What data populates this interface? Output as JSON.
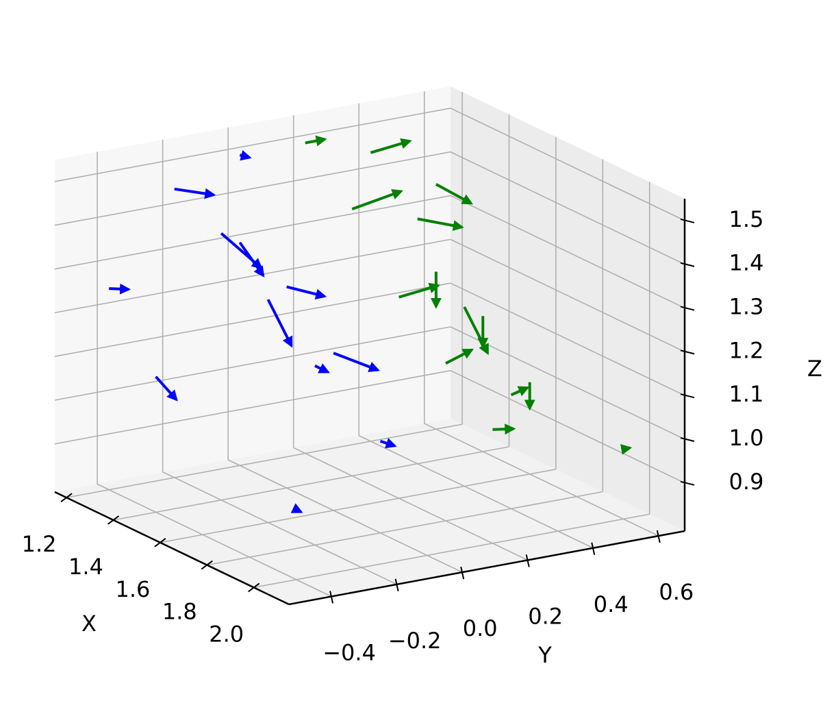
{
  "chart_data": {
    "type": "quiver3d",
    "xlabel": "X",
    "ylabel": "Y",
    "zlabel": "Z",
    "xlim": [
      1.15,
      2.15
    ],
    "ylim": [
      -0.53,
      0.68
    ],
    "zlim": [
      0.79,
      1.55
    ],
    "xticks": [
      1.2,
      1.4,
      1.6,
      1.8,
      {
        "value": 2.0,
        "label": "2.0"
      }
    ],
    "yticks": [
      {
        "value": -0.4,
        "label": "−0.4"
      },
      {
        "value": -0.2,
        "label": "−0.2"
      },
      {
        "value": 0.0,
        "label": "0.0"
      },
      0.2,
      0.4,
      0.6
    ],
    "zticks": [
      0.9,
      {
        "value": 1.0,
        "label": "1.0"
      },
      1.1,
      1.2,
      1.3,
      1.4,
      1.5
    ],
    "grid": true,
    "series": [
      {
        "color": "#0000ff",
        "x": [
          1.2,
          1.2,
          1.4,
          1.4,
          1.2,
          1.6,
          1.6,
          1.4,
          1.8,
          1.8,
          1.2,
          2.0
        ],
        "y": [
          -0.2,
          0.0,
          -0.2,
          0.0,
          -0.4,
          -0.2,
          0.0,
          -0.4,
          -0.2,
          0.0,
          0.0,
          -0.4
        ],
        "z": [
          1.45,
          1.3,
          1.4,
          1.25,
          1.25,
          1.3,
          1.15,
          1.1,
          1.2,
          1.0,
          1.5,
          0.95
        ],
        "u": [
          0.0,
          0.1,
          0.1,
          0.05,
          0.0,
          0.1,
          0.05,
          0.06,
          0.0,
          0.02,
          0.0,
          0.02
        ],
        "v": [
          0.12,
          0.0,
          0.05,
          0.08,
          0.06,
          0.0,
          0.1,
          0.02,
          0.04,
          0.03,
          0.03,
          0.0
        ],
        "w": [
          -0.03,
          -0.05,
          -0.06,
          -0.02,
          -0.01,
          -0.08,
          -0.04,
          -0.04,
          -0.02,
          -0.01,
          -0.01,
          0.0
        ]
      },
      {
        "color": "#008000",
        "x": [
          1.2,
          1.2,
          1.4,
          1.4,
          1.6,
          1.6,
          1.2,
          1.4,
          1.8,
          1.8,
          2.0,
          1.6,
          1.2,
          2.0
        ],
        "y": [
          0.4,
          0.6,
          0.2,
          0.4,
          0.2,
          0.4,
          0.6,
          0.6,
          0.2,
          0.4,
          0.2,
          0.6,
          0.2,
          0.6
        ],
        "z": [
          1.45,
          1.35,
          1.4,
          1.35,
          1.25,
          1.2,
          1.15,
          1.1,
          1.15,
          1.05,
          1.05,
          1.0,
          1.5,
          0.95
        ],
        "u": [
          0.0,
          0.08,
          0.0,
          0.05,
          0.0,
          0.1,
          0.0,
          0.0,
          0.0,
          0.0,
          0.02,
          0.0,
          0.0,
          0.0
        ],
        "v": [
          0.12,
          0.05,
          0.15,
          0.1,
          0.12,
          0.0,
          0.0,
          0.0,
          0.08,
          0.05,
          0.05,
          0.0,
          0.06,
          0.02
        ],
        "w": [
          0.01,
          -0.03,
          0.02,
          -0.02,
          0.01,
          -0.08,
          -0.08,
          -0.07,
          0.02,
          0.01,
          0.0,
          -0.06,
          0.0,
          0.0
        ]
      }
    ]
  }
}
